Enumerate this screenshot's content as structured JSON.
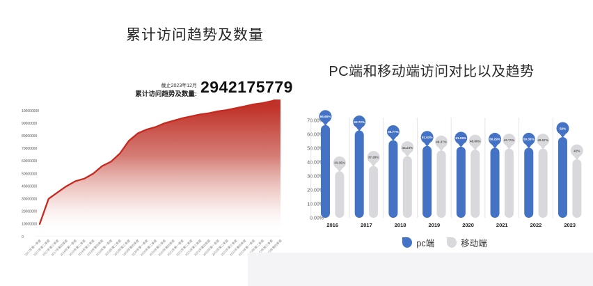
{
  "titles": {
    "left": "累计访问趋势及数量",
    "right": "PC端和移动端访问对比以及趋势"
  },
  "stat": {
    "asof": "截止2023年12月",
    "label": "累计访问趋势及数量:",
    "value": "2942175779"
  },
  "legend": {
    "pc": "pc端",
    "mobile": "移动端"
  },
  "colors": {
    "pc_blue": "#4472c4",
    "mobile_gray": "#d9d9dd",
    "trend_red": "#c8281e",
    "area_red_top": "#c0332a"
  },
  "chart_data": [
    {
      "type": "area",
      "title": "累计访问趋势及数量",
      "note": "截止2023年12月",
      "total_label": "累计访问趋势及数量:",
      "total_value": "2942175779",
      "categories": [
        "2017年第一季度",
        "2017年第二季度",
        "2017年第三季度",
        "2017年第四季度",
        "2018年第一季度",
        "2018年第二季度",
        "2018年第三季度",
        "2018年第四季度",
        "2019年第一季度",
        "2019年第二季度",
        "2019年第三季度",
        "2019年第四季度",
        "2020年第一季度",
        "2020年第二季度",
        "2020年第三季度",
        "2020年第四季度",
        "2021年第一季度",
        "2021年第二季度",
        "2021年第三季度",
        "2021年第四季度",
        "2022年第一季度",
        "2022年第二季度",
        "2022年第三季度",
        "2022年第四季度",
        "2023年第一季度",
        "2023年第二季度",
        "2023年第三季度",
        "2023年第四季度"
      ],
      "values": [
        10000000,
        30000000,
        35000000,
        40000000,
        44000000,
        46000000,
        50000000,
        56000000,
        59500000,
        66000000,
        76000000,
        82000000,
        85000000,
        87000000,
        90000000,
        92000000,
        94000000,
        95500000,
        97000000,
        98000000,
        99500000,
        100500000,
        102000000,
        103500000,
        105000000,
        106000000,
        107500000,
        110000000
      ],
      "yticks": [
        0,
        10000000,
        20000000,
        30000000,
        40000000,
        50000000,
        60000000,
        70000000,
        80000000,
        90000000,
        100000000
      ],
      "xlabel": "",
      "ylabel": "",
      "grid": false,
      "line_color": "#c8281e",
      "fill_gradient": [
        "#c0332a",
        "#cd655c",
        "#e8b7b1",
        "#ffffff"
      ]
    },
    {
      "type": "bar",
      "subtype": "lollipop",
      "title": "PC端和移动端访问对比以及趋势",
      "categories": [
        "2016",
        "2017",
        "2018",
        "2019",
        "2020",
        "2021",
        "2022",
        "2023"
      ],
      "series": [
        {
          "name": "pc端",
          "color": "#4472c4",
          "label_color": "#ffffff",
          "values": [
            66.65,
            62.72,
            55.77,
            51.63,
            51.05,
            50.29,
            50.33,
            58
          ],
          "labels": [
            "66.65%",
            "62.72%",
            "55.77%",
            "51.63%",
            "51.05%",
            "50.29%",
            "50.33%",
            "58%"
          ]
        },
        {
          "name": "移动端",
          "color": "#d9d9dd",
          "label_color": "#595959",
          "values": [
            33.35,
            37.28,
            44.23,
            48.37,
            48.95,
            49.71,
            49.67,
            42
          ],
          "labels": [
            "33.35%",
            "37.28%",
            "44.23%",
            "48.37%",
            "48.95%",
            "49.71%",
            "49.67%",
            "42%"
          ]
        }
      ],
      "yticks": [
        "0.00%",
        "10.00%",
        "20.00%",
        "30.00%",
        "40.00%",
        "50.00%",
        "60.00%",
        "70.00%"
      ],
      "ylim": [
        0,
        70
      ],
      "grid": false,
      "legend_position": "bottom"
    }
  ]
}
